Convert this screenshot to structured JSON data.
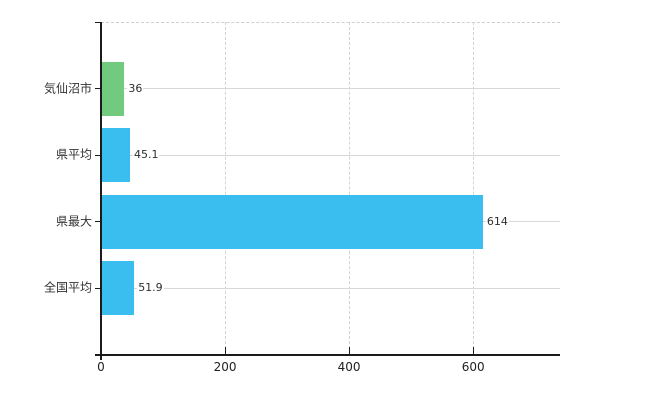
{
  "chart_data": {
    "type": "bar",
    "orientation": "horizontal",
    "title": "",
    "xlabel": "",
    "ylabel": "",
    "categories": [
      "気仙沼市",
      "県平均",
      "県最大",
      "全国平均"
    ],
    "values": [
      36,
      45.1,
      614,
      51.9
    ],
    "value_labels": [
      "36",
      "45.1",
      "614",
      "51.9"
    ],
    "series": [
      {
        "name": "value",
        "values": [
          36,
          45.1,
          614,
          51.9
        ],
        "colors": [
          "#71ca7e",
          "#3abeef",
          "#3abeef",
          "#3abeef"
        ]
      }
    ],
    "x_ticks": [
      0,
      200,
      400,
      600
    ],
    "x_tick_labels": [
      "0",
      "200",
      "400",
      "600"
    ],
    "xlim": [
      0,
      740
    ],
    "grid": true,
    "gridline_style": {
      "vertical": "dashed",
      "horizontal": "solid"
    },
    "legend_position": "none",
    "colors": {
      "bar_green": "#71ca7e",
      "bar_blue": "#3abeef",
      "axis": "#1b1b1b",
      "grid": "#d6d6d6",
      "text": "#333333",
      "background": "#ffffff"
    }
  }
}
